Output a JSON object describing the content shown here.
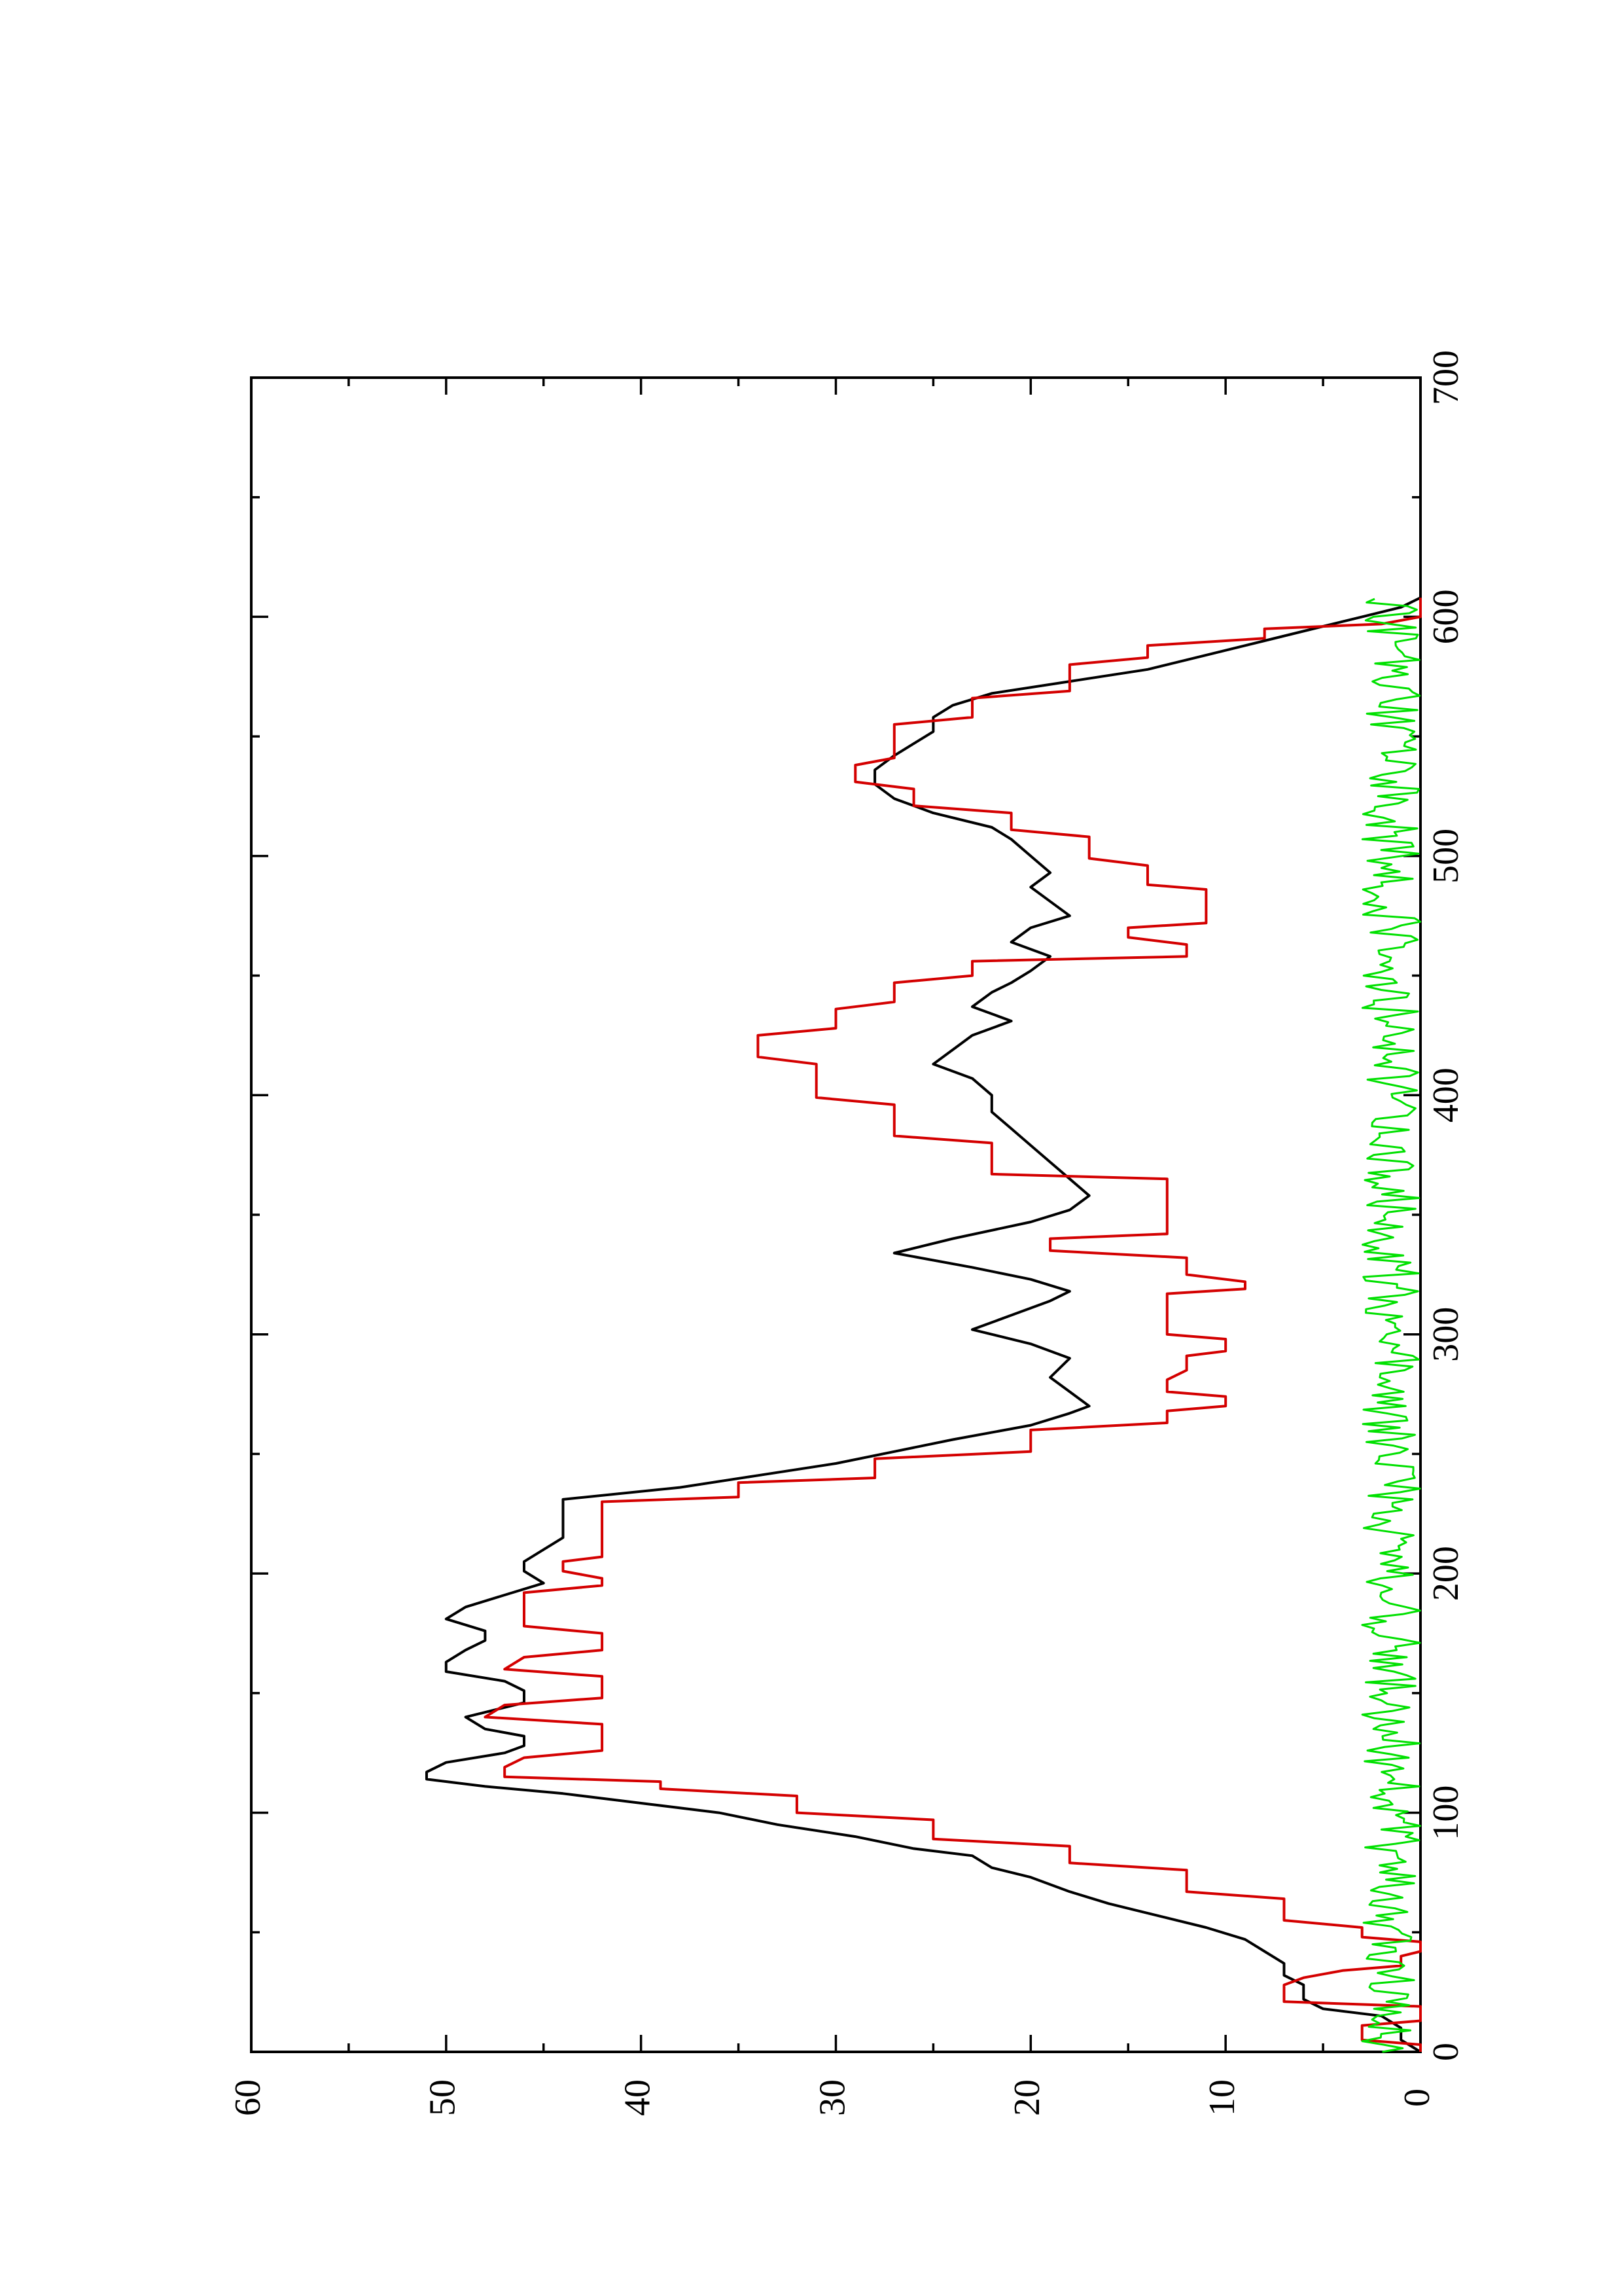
{
  "chart_data": {
    "type": "line",
    "title": "",
    "xlabel": "",
    "ylabel": "",
    "orientation": "rotated 90 degrees counter-clockwise",
    "xlim": [
      0,
      700
    ],
    "ylim": [
      0,
      60
    ],
    "x_ticks": [
      0,
      100,
      200,
      300,
      400,
      500,
      600,
      700
    ],
    "y_ticks": [
      0,
      10,
      20,
      30,
      40,
      50,
      60
    ],
    "grid": false,
    "legend": "none",
    "series": [
      {
        "color": "#000000",
        "style": "line",
        "points": [
          [
            0,
            0
          ],
          [
            5,
            1
          ],
          [
            10,
            1
          ],
          [
            15,
            2
          ],
          [
            18,
            5
          ],
          [
            22,
            6
          ],
          [
            28,
            6
          ],
          [
            32,
            7
          ],
          [
            37,
            7
          ],
          [
            42,
            8
          ],
          [
            47,
            9
          ],
          [
            52,
            11
          ],
          [
            58,
            14
          ],
          [
            62,
            16
          ],
          [
            67,
            18
          ],
          [
            73,
            20
          ],
          [
            77,
            22
          ],
          [
            82,
            23
          ],
          [
            85,
            26
          ],
          [
            90,
            29
          ],
          [
            95,
            33
          ],
          [
            100,
            36
          ],
          [
            104,
            40
          ],
          [
            108,
            44
          ],
          [
            111,
            48
          ],
          [
            114,
            51
          ],
          [
            117,
            51
          ],
          [
            121,
            50
          ],
          [
            125,
            47
          ],
          [
            128,
            46
          ],
          [
            132,
            46
          ],
          [
            135,
            48
          ],
          [
            140,
            49
          ],
          [
            146,
            46
          ],
          [
            151,
            46
          ],
          [
            155,
            47
          ],
          [
            159,
            50
          ],
          [
            163,
            50
          ],
          [
            168,
            49
          ],
          [
            172,
            48
          ],
          [
            176,
            48
          ],
          [
            181,
            50
          ],
          [
            186,
            49
          ],
          [
            191,
            47
          ],
          [
            196,
            45
          ],
          [
            201,
            46
          ],
          [
            205,
            46
          ],
          [
            210,
            45
          ],
          [
            215,
            44
          ],
          [
            221,
            44
          ],
          [
            231,
            44
          ],
          [
            236,
            38
          ],
          [
            241,
            34
          ],
          [
            246,
            30
          ],
          [
            251,
            27
          ],
          [
            256,
            24
          ],
          [
            262,
            20
          ],
          [
            267,
            18
          ],
          [
            270,
            17
          ],
          [
            276,
            18
          ],
          [
            282,
            19
          ],
          [
            290,
            18
          ],
          [
            296,
            20
          ],
          [
            302,
            23
          ],
          [
            308,
            21
          ],
          [
            314,
            19
          ],
          [
            318,
            18
          ],
          [
            323,
            20
          ],
          [
            328,
            23
          ],
          [
            334,
            27
          ],
          [
            340,
            24
          ],
          [
            347,
            20
          ],
          [
            352,
            18
          ],
          [
            358,
            17
          ],
          [
            365,
            18
          ],
          [
            372,
            19
          ],
          [
            379,
            20
          ],
          [
            386,
            21
          ],
          [
            393,
            22
          ],
          [
            400,
            22
          ],
          [
            407,
            23
          ],
          [
            413,
            25
          ],
          [
            419,
            24
          ],
          [
            425,
            23
          ],
          [
            431,
            21
          ],
          [
            437,
            23
          ],
          [
            443,
            22
          ],
          [
            447,
            21
          ],
          [
            452,
            20
          ],
          [
            458,
            19
          ],
          [
            464,
            21
          ],
          [
            470,
            20
          ],
          [
            475,
            18
          ],
          [
            481,
            19
          ],
          [
            487,
            20
          ],
          [
            493,
            19
          ],
          [
            500,
            20
          ],
          [
            507,
            21
          ],
          [
            512,
            22
          ],
          [
            518,
            25
          ],
          [
            524,
            27
          ],
          [
            530,
            28
          ],
          [
            536,
            28
          ],
          [
            542,
            27
          ],
          [
            547,
            26
          ],
          [
            552,
            25
          ],
          [
            558,
            25
          ],
          [
            563,
            24
          ],
          [
            568,
            22
          ],
          [
            573,
            18
          ],
          [
            578,
            14
          ],
          [
            584,
            11
          ],
          [
            590,
            8
          ],
          [
            596,
            5
          ],
          [
            600,
            3
          ],
          [
            604,
            1
          ],
          [
            608,
            0
          ]
        ]
      },
      {
        "color": "#d40000",
        "style": "step",
        "points": [
          [
            0,
            0
          ],
          [
            3,
            0
          ],
          [
            5,
            3
          ],
          [
            11,
            3
          ],
          [
            13,
            0
          ],
          [
            19,
            0
          ],
          [
            21,
            7
          ],
          [
            28,
            7
          ],
          [
            31,
            6
          ],
          [
            34,
            4
          ],
          [
            36,
            1
          ],
          [
            40,
            1
          ],
          [
            42,
            0
          ],
          [
            46,
            0
          ],
          [
            48,
            3
          ],
          [
            52,
            3
          ],
          [
            55,
            7
          ],
          [
            64,
            7
          ],
          [
            67,
            12
          ],
          [
            76,
            12
          ],
          [
            79,
            18
          ],
          [
            86,
            18
          ],
          [
            89,
            25
          ],
          [
            97,
            25
          ],
          [
            100,
            32
          ],
          [
            107,
            32
          ],
          [
            110,
            39
          ],
          [
            113,
            39
          ],
          [
            115,
            47
          ],
          [
            119,
            47
          ],
          [
            123,
            46
          ],
          [
            126,
            42
          ],
          [
            137,
            42
          ],
          [
            140,
            48
          ],
          [
            145,
            47
          ],
          [
            148,
            42
          ],
          [
            157,
            42
          ],
          [
            160,
            47
          ],
          [
            165,
            46
          ],
          [
            168,
            42
          ],
          [
            175,
            42
          ],
          [
            178,
            46
          ],
          [
            192,
            46
          ],
          [
            195,
            42
          ],
          [
            198,
            42
          ],
          [
            201,
            44
          ],
          [
            205,
            44
          ],
          [
            207,
            42
          ],
          [
            230,
            42
          ],
          [
            232,
            35
          ],
          [
            238,
            35
          ],
          [
            240,
            28
          ],
          [
            248,
            28
          ],
          [
            251,
            20
          ],
          [
            260,
            20
          ],
          [
            263,
            13
          ],
          [
            268,
            13
          ],
          [
            270,
            10
          ],
          [
            274,
            10
          ],
          [
            276,
            13
          ],
          [
            281,
            13
          ],
          [
            285,
            12
          ],
          [
            291,
            12
          ],
          [
            293,
            10
          ],
          [
            298,
            10
          ],
          [
            300,
            13
          ],
          [
            317,
            13
          ],
          [
            319,
            9
          ],
          [
            322,
            9
          ],
          [
            325,
            12
          ],
          [
            332,
            12
          ],
          [
            335,
            19
          ],
          [
            340,
            19
          ],
          [
            342,
            13
          ],
          [
            365,
            13
          ],
          [
            367,
            22
          ],
          [
            380,
            22
          ],
          [
            383,
            27
          ],
          [
            396,
            27
          ],
          [
            399,
            31
          ],
          [
            413,
            31
          ],
          [
            416,
            34
          ],
          [
            425,
            34
          ],
          [
            428,
            30
          ],
          [
            436,
            30
          ],
          [
            439,
            27
          ],
          [
            447,
            27
          ],
          [
            450,
            23
          ],
          [
            456,
            23
          ],
          [
            458,
            12
          ],
          [
            463,
            12
          ],
          [
            466,
            15
          ],
          [
            470,
            15
          ],
          [
            472,
            11
          ],
          [
            486,
            11
          ],
          [
            488,
            14
          ],
          [
            496,
            14
          ],
          [
            499,
            17
          ],
          [
            508,
            17
          ],
          [
            511,
            21
          ],
          [
            518,
            21
          ],
          [
            521,
            26
          ],
          [
            528,
            26
          ],
          [
            531,
            29
          ],
          [
            538,
            29
          ],
          [
            541,
            27
          ],
          [
            555,
            27
          ],
          [
            558,
            23
          ],
          [
            566,
            23
          ],
          [
            569,
            18
          ],
          [
            580,
            18
          ],
          [
            583,
            14
          ],
          [
            588,
            14
          ],
          [
            591,
            8
          ],
          [
            595,
            8
          ],
          [
            597,
            2
          ],
          [
            600,
            0
          ],
          [
            608,
            0
          ]
        ]
      },
      {
        "color": "#00e000",
        "style": "noise",
        "x_range": [
          0,
          608
        ],
        "y_range": [
          0,
          3
        ]
      }
    ]
  }
}
